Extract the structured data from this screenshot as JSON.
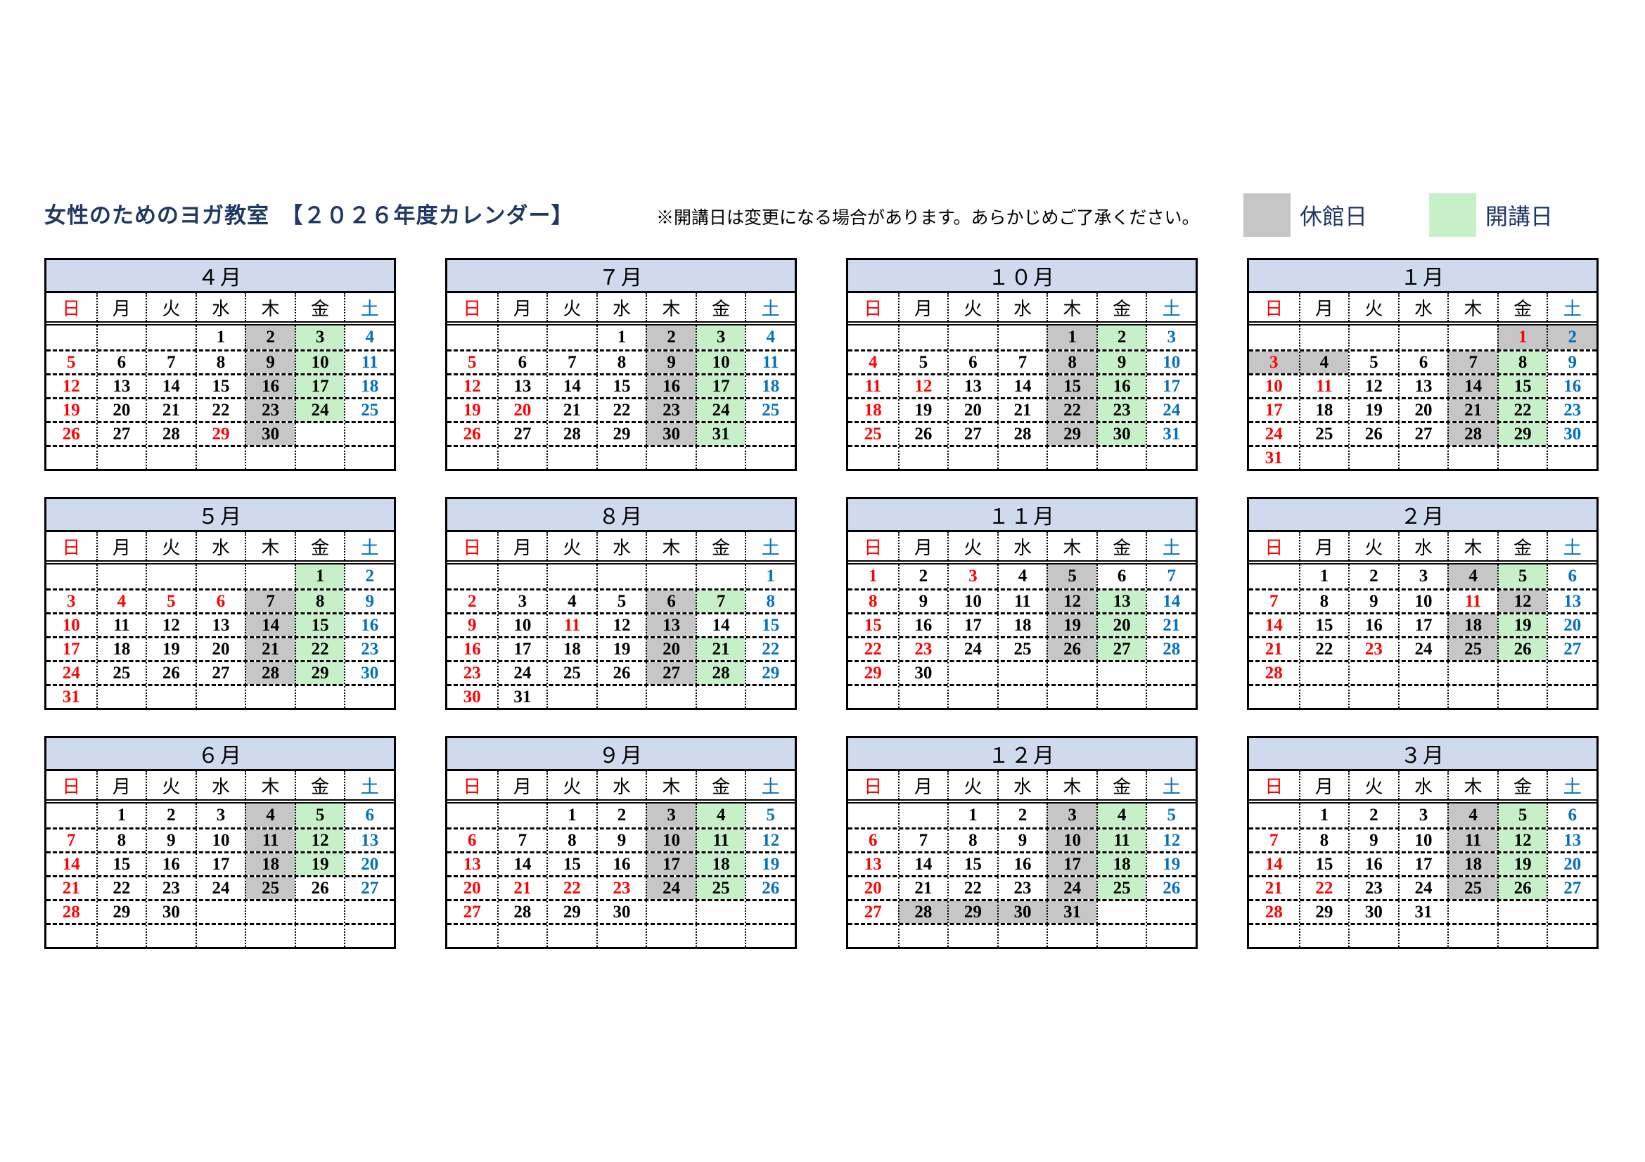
{
  "header": {
    "title": "女性のためのヨガ教室　【２０２６年度カレンダー】",
    "note": "※開講日は変更になる場合があります。あらかじめご了承ください。"
  },
  "legend": {
    "closed_label": "休館日",
    "open_label": "開講日"
  },
  "colors": {
    "sunday_red": "#ff0000",
    "saturday_blue": "#0070c0",
    "closed_gray": "#c6c6c6",
    "open_green": "#c8f0c8",
    "month_header_bg": "#d0daee",
    "title_navy": "#1f3864"
  },
  "weekdays": [
    "日",
    "月",
    "火",
    "水",
    "木",
    "金",
    "土"
  ],
  "cell_flags_note": "R=red text, B=blue text, G=closed-gray fill, V=open-green fill",
  "months": [
    {
      "title": "４月",
      "weeks": [
        [
          "",
          "",
          "",
          "1",
          "2G",
          "3V",
          "4B"
        ],
        [
          "5R",
          "6",
          "7",
          "8",
          "9G",
          "10V",
          "11B"
        ],
        [
          "12R",
          "13",
          "14",
          "15",
          "16G",
          "17V",
          "18B"
        ],
        [
          "19R",
          "20",
          "21",
          "22",
          "23G",
          "24V",
          "25B"
        ],
        [
          "26R",
          "27",
          "28",
          "29R",
          "30G",
          "",
          ""
        ],
        [
          "",
          "",
          "",
          "",
          "",
          "",
          ""
        ]
      ]
    },
    {
      "title": "５月",
      "weeks": [
        [
          "",
          "",
          "",
          "",
          "",
          "1V",
          "2B"
        ],
        [
          "3R",
          "4R",
          "5R",
          "6R",
          "7G",
          "8V",
          "9B"
        ],
        [
          "10R",
          "11",
          "12",
          "13",
          "14G",
          "15V",
          "16B"
        ],
        [
          "17R",
          "18",
          "19",
          "20",
          "21G",
          "22V",
          "23B"
        ],
        [
          "24R",
          "25",
          "26",
          "27",
          "28G",
          "29V",
          "30B"
        ],
        [
          "31R",
          "",
          "",
          "",
          "",
          "",
          ""
        ]
      ]
    },
    {
      "title": "６月",
      "weeks": [
        [
          "",
          "1",
          "2",
          "3",
          "4G",
          "5V",
          "6B"
        ],
        [
          "7R",
          "8",
          "9",
          "10",
          "11G",
          "12V",
          "13B"
        ],
        [
          "14R",
          "15",
          "16",
          "17",
          "18G",
          "19V",
          "20B"
        ],
        [
          "21R",
          "22",
          "23",
          "24",
          "25G",
          "26",
          "27B"
        ],
        [
          "28R",
          "29",
          "30",
          "",
          "",
          "",
          ""
        ],
        [
          "",
          "",
          "",
          "",
          "",
          "",
          ""
        ]
      ]
    },
    {
      "title": "７月",
      "weeks": [
        [
          "",
          "",
          "",
          "1",
          "2G",
          "3V",
          "4B"
        ],
        [
          "5R",
          "6",
          "7",
          "8",
          "9G",
          "10V",
          "11B"
        ],
        [
          "12R",
          "13",
          "14",
          "15",
          "16G",
          "17V",
          "18B"
        ],
        [
          "19R",
          "20R",
          "21",
          "22",
          "23G",
          "24V",
          "25B"
        ],
        [
          "26R",
          "27",
          "28",
          "29",
          "30G",
          "31V",
          ""
        ],
        [
          "",
          "",
          "",
          "",
          "",
          "",
          ""
        ]
      ]
    },
    {
      "title": "８月",
      "weeks": [
        [
          "",
          "",
          "",
          "",
          "",
          "",
          "1B"
        ],
        [
          "2R",
          "3",
          "4",
          "5",
          "6G",
          "7V",
          "8B"
        ],
        [
          "9R",
          "10",
          "11R",
          "12",
          "13G",
          "14",
          "15B"
        ],
        [
          "16R",
          "17",
          "18",
          "19",
          "20G",
          "21V",
          "22B"
        ],
        [
          "23R",
          "24",
          "25",
          "26",
          "27G",
          "28V",
          "29B"
        ],
        [
          "30R",
          "31",
          "",
          "",
          "",
          "",
          ""
        ]
      ]
    },
    {
      "title": "９月",
      "weeks": [
        [
          "",
          "",
          "1",
          "2",
          "3G",
          "4V",
          "5B"
        ],
        [
          "6R",
          "7",
          "8",
          "9",
          "10G",
          "11V",
          "12B"
        ],
        [
          "13R",
          "14",
          "15",
          "16",
          "17G",
          "18V",
          "19B"
        ],
        [
          "20R",
          "21R",
          "22R",
          "23R",
          "24G",
          "25V",
          "26B"
        ],
        [
          "27R",
          "28",
          "29",
          "30",
          "",
          "",
          ""
        ],
        [
          "",
          "",
          "",
          "",
          "",
          "",
          ""
        ]
      ]
    },
    {
      "title": "１０月",
      "weeks": [
        [
          "",
          "",
          "",
          "",
          "1G",
          "2V",
          "3B"
        ],
        [
          "4R",
          "5",
          "6",
          "7",
          "8G",
          "9V",
          "10B"
        ],
        [
          "11R",
          "12R",
          "13",
          "14",
          "15G",
          "16V",
          "17B"
        ],
        [
          "18R",
          "19",
          "20",
          "21",
          "22G",
          "23V",
          "24B"
        ],
        [
          "25R",
          "26",
          "27",
          "28",
          "29G",
          "30V",
          "31B"
        ],
        [
          "",
          "",
          "",
          "",
          "",
          "",
          ""
        ]
      ]
    },
    {
      "title": "１１月",
      "weeks": [
        [
          "1R",
          "2",
          "3R",
          "4",
          "5G",
          "6",
          "7B"
        ],
        [
          "8R",
          "9",
          "10",
          "11",
          "12G",
          "13V",
          "14B"
        ],
        [
          "15R",
          "16",
          "17",
          "18",
          "19G",
          "20V",
          "21B"
        ],
        [
          "22R",
          "23R",
          "24",
          "25",
          "26G",
          "27V",
          "28B"
        ],
        [
          "29R",
          "30",
          "",
          "",
          "",
          "",
          ""
        ],
        [
          "",
          "",
          "",
          "",
          "",
          "",
          ""
        ]
      ]
    },
    {
      "title": "１２月",
      "weeks": [
        [
          "",
          "",
          "1",
          "2",
          "3G",
          "4V",
          "5B"
        ],
        [
          "6R",
          "7",
          "8",
          "9",
          "10G",
          "11V",
          "12B"
        ],
        [
          "13R",
          "14",
          "15",
          "16",
          "17G",
          "18V",
          "19B"
        ],
        [
          "20R",
          "21",
          "22",
          "23",
          "24G",
          "25V",
          "26B"
        ],
        [
          "27R",
          "28G",
          "29G",
          "30G",
          "31G",
          "",
          ""
        ],
        [
          "",
          "",
          "",
          "",
          "",
          "",
          ""
        ]
      ]
    },
    {
      "title": "１月",
      "weeks": [
        [
          "",
          "",
          "",
          "",
          "",
          "1RG",
          "2BG"
        ],
        [
          "3RG",
          "4G",
          "5",
          "6",
          "7G",
          "8V",
          "9B"
        ],
        [
          "10R",
          "11R",
          "12",
          "13",
          "14G",
          "15V",
          "16B"
        ],
        [
          "17R",
          "18",
          "19",
          "20",
          "21G",
          "22V",
          "23B"
        ],
        [
          "24R",
          "25",
          "26",
          "27",
          "28G",
          "29V",
          "30B"
        ],
        [
          "31R",
          "",
          "",
          "",
          "",
          "",
          ""
        ]
      ]
    },
    {
      "title": "２月",
      "weeks": [
        [
          "",
          "1",
          "2",
          "3",
          "4G",
          "5V",
          "6B"
        ],
        [
          "7R",
          "8",
          "9",
          "10",
          "11R",
          "12G",
          "13B"
        ],
        [
          "14R",
          "15",
          "16",
          "17",
          "18G",
          "19V",
          "20B"
        ],
        [
          "21R",
          "22",
          "23R",
          "24",
          "25G",
          "26V",
          "27B"
        ],
        [
          "28R",
          "",
          "",
          "",
          "",
          "",
          ""
        ],
        [
          "",
          "",
          "",
          "",
          "",
          "",
          ""
        ]
      ]
    },
    {
      "title": "３月",
      "weeks": [
        [
          "",
          "1",
          "2",
          "3",
          "4G",
          "5V",
          "6B"
        ],
        [
          "7R",
          "8",
          "9",
          "10",
          "11G",
          "12V",
          "13B"
        ],
        [
          "14R",
          "15",
          "16",
          "17",
          "18G",
          "19V",
          "20B"
        ],
        [
          "21R",
          "22R",
          "23",
          "24",
          "25G",
          "26V",
          "27B"
        ],
        [
          "28R",
          "29",
          "30",
          "31",
          "",
          "",
          ""
        ],
        [
          "",
          "",
          "",
          "",
          "",
          "",
          ""
        ]
      ]
    }
  ]
}
